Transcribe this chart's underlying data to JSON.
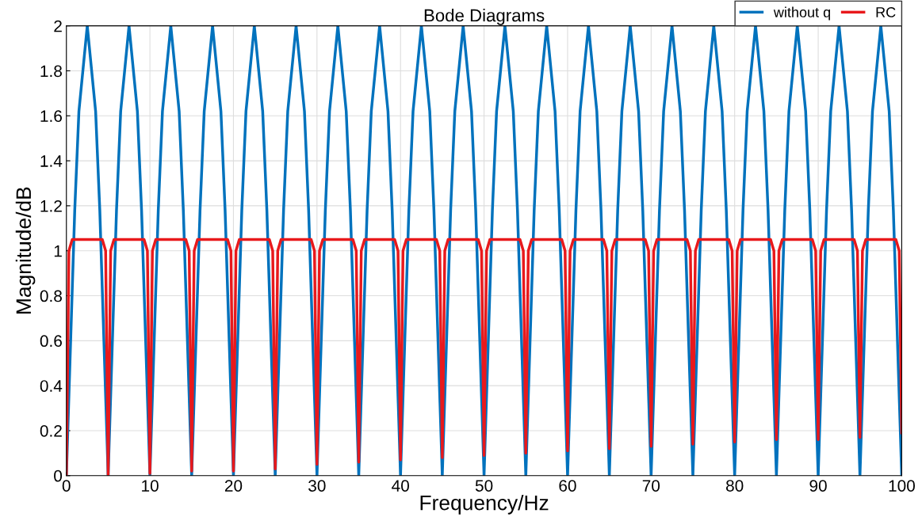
{
  "chart_data": {
    "type": "line",
    "title": "Bode Diagrams",
    "xlabel": "Frequency/Hz",
    "ylabel": "Magnitude/dB",
    "xlim": [
      0,
      100
    ],
    "ylim": [
      0,
      2
    ],
    "xticks": [
      0,
      10,
      20,
      30,
      40,
      50,
      60,
      70,
      80,
      90,
      100
    ],
    "yticks": [
      0,
      {
        "value": 0.2,
        "label": "0.2"
      },
      {
        "value": 0.4,
        "label": "0.4"
      },
      {
        "value": 0.6,
        "label": "0.6"
      },
      {
        "value": 0.8,
        "label": "0.8"
      },
      1,
      {
        "value": 1.2,
        "label": "1.2"
      },
      {
        "value": 1.4,
        "label": "1.4"
      },
      {
        "value": 1.6,
        "label": "1.6"
      },
      {
        "value": 1.8,
        "label": "1.8"
      },
      2
    ],
    "grid": true,
    "legend": "top right",
    "line_style": "solid",
    "marker": "none",
    "series": [
      {
        "name": "without q",
        "color": "#0072bd",
        "x": [
          0,
          1,
          1.5,
          2.5,
          3.5,
          4,
          5,
          6,
          6.5,
          7.5,
          8.5,
          9,
          10,
          11,
          11.5,
          12.5,
          13.5,
          14,
          15,
          16,
          16.5,
          17.5,
          18.5,
          19,
          20,
          21,
          21.5,
          22.5,
          23.5,
          24,
          25,
          26,
          26.5,
          27.5,
          28.5,
          29,
          30,
          31,
          31.5,
          32.5,
          33.5,
          34,
          35,
          36,
          36.5,
          37.5,
          38.5,
          39,
          40,
          41,
          41.5,
          42.5,
          43.5,
          44,
          45,
          46,
          46.5,
          47.5,
          48.5,
          49,
          50,
          51,
          51.5,
          52.5,
          53.5,
          54,
          55,
          56,
          56.5,
          57.5,
          58.5,
          59,
          60,
          61,
          61.5,
          62.5,
          63.5,
          64,
          65,
          66,
          66.5,
          67.5,
          68.5,
          69,
          70,
          71,
          71.5,
          72.5,
          73.5,
          74,
          75,
          76,
          76.5,
          77.5,
          78.5,
          79,
          80,
          81,
          81.5,
          82.5,
          83.5,
          84,
          85,
          86,
          86.5,
          87.5,
          88.5,
          89,
          90,
          91,
          91.5,
          92.5,
          93.5,
          94,
          95,
          96,
          96.5,
          97.5,
          98.5,
          99,
          100
        ],
        "values": [
          0,
          1.18,
          1.62,
          2,
          1.62,
          1.18,
          0,
          1.18,
          1.62,
          2,
          1.62,
          1.18,
          0,
          1.18,
          1.62,
          2,
          1.62,
          1.18,
          0,
          1.18,
          1.62,
          2,
          1.62,
          1.18,
          0,
          1.18,
          1.62,
          2,
          1.62,
          1.18,
          0,
          1.18,
          1.62,
          2,
          1.62,
          1.18,
          0,
          1.18,
          1.62,
          2,
          1.62,
          1.18,
          0,
          1.18,
          1.62,
          2,
          1.62,
          1.18,
          0,
          1.18,
          1.62,
          2,
          1.62,
          1.18,
          0,
          1.18,
          1.62,
          2,
          1.62,
          1.18,
          0,
          1.18,
          1.62,
          2,
          1.62,
          1.18,
          0,
          1.18,
          1.62,
          2,
          1.62,
          1.18,
          0,
          1.18,
          1.62,
          2,
          1.62,
          1.18,
          0,
          1.18,
          1.62,
          2,
          1.62,
          1.18,
          0,
          1.18,
          1.62,
          2,
          1.62,
          1.18,
          0,
          1.18,
          1.62,
          2,
          1.62,
          1.18,
          0,
          1.18,
          1.62,
          2,
          1.62,
          1.18,
          0,
          1.18,
          1.62,
          2,
          1.62,
          1.18,
          0,
          1.18,
          1.62,
          2,
          1.62,
          1.18,
          0,
          1.18,
          1.62,
          2,
          1.62,
          1.18,
          0
        ]
      },
      {
        "name": "RC",
        "color": "#e8191c",
        "x": [
          0,
          0.3,
          0.7,
          4.3,
          4.7,
          5,
          5.3,
          5.7,
          9.3,
          9.7,
          10,
          10.3,
          10.7,
          14.3,
          14.7,
          15,
          15.3,
          15.7,
          19.3,
          19.7,
          20,
          20.3,
          20.7,
          24.3,
          24.7,
          25,
          25.3,
          25.7,
          29.3,
          29.7,
          30,
          30.3,
          30.7,
          34.3,
          34.7,
          35,
          35.3,
          35.7,
          39.3,
          39.7,
          40,
          40.3,
          40.7,
          44.3,
          44.7,
          45,
          45.3,
          45.7,
          49.3,
          49.7,
          50,
          50.3,
          50.7,
          54.3,
          54.7,
          55,
          55.3,
          55.7,
          59.3,
          59.7,
          60,
          60.3,
          60.7,
          64.3,
          64.7,
          65,
          65.3,
          65.7,
          69.3,
          69.7,
          70,
          70.3,
          70.7,
          74.3,
          74.7,
          75,
          75.3,
          75.7,
          79.3,
          79.7,
          80,
          80.3,
          80.7,
          84.3,
          84.7,
          85,
          85.3,
          85.7,
          89.3,
          89.7,
          90,
          90.3,
          90.7,
          94.3,
          94.7,
          95,
          95.3,
          95.7,
          99.3,
          99.7,
          100
        ],
        "values": [
          0,
          1,
          1.05,
          1.05,
          1,
          0,
          1,
          1.05,
          1.05,
          1,
          0.01,
          1,
          1.05,
          1.05,
          1,
          0.02,
          1,
          1.05,
          1.05,
          1,
          0.02,
          1,
          1.05,
          1.05,
          1,
          0.03,
          1,
          1.05,
          1.05,
          1,
          0.05,
          1,
          1.05,
          1.05,
          1,
          0.06,
          1,
          1.05,
          1.05,
          1,
          0.07,
          1,
          1.05,
          1.05,
          1,
          0.08,
          1,
          1.05,
          1.05,
          1,
          0.09,
          1,
          1.05,
          1.05,
          1,
          0.1,
          1,
          1.05,
          1.05,
          1,
          0.11,
          1,
          1.05,
          1.05,
          1,
          0.12,
          1,
          1.05,
          1.05,
          1,
          0.13,
          1,
          1.05,
          1.05,
          1,
          0.14,
          1,
          1.05,
          1.05,
          1,
          0.15,
          1,
          1.05,
          1.05,
          1,
          0.16,
          1,
          1.05,
          1.05,
          1,
          0.16,
          1,
          1.05,
          1.05,
          1,
          0.17,
          1,
          1.05,
          1.05,
          1,
          0.19
        ]
      }
    ]
  }
}
